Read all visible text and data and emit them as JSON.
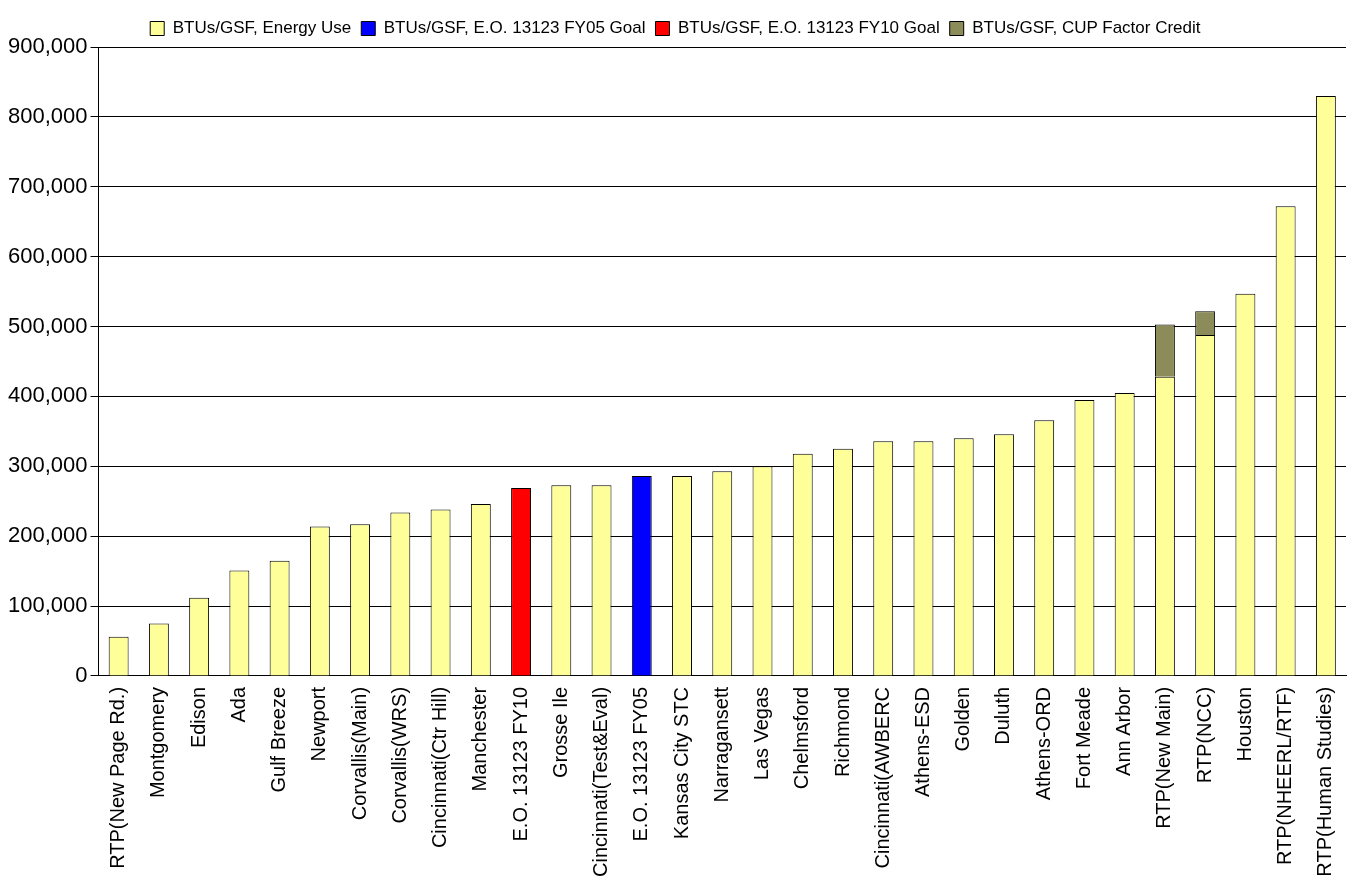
{
  "chart_data": {
    "type": "bar",
    "stacked": true,
    "grid": "y",
    "legend": "top",
    "categories": [
      "RTP(New Page Rd.)",
      "Montgomery",
      "Edison",
      "Ada",
      "Gulf Breeze",
      "Newport",
      "Corvallis(Main)",
      "Corvallis(WRS)",
      "Cincinnati(Ctr Hill)",
      "Manchester",
      "E.O. 13123 FY10",
      "Grosse Ile",
      "Cincinnati(Test&Eval)",
      "E.O. 13123 FY05",
      "Kansas City STC",
      "Narragansett",
      "Las Vegas",
      "Chelmsford",
      "Richmond",
      "Cincinnati(AWBERC",
      "Athens-ESD",
      "Golden",
      "Duluth",
      "Athens-ORD",
      "Fort Meade",
      "Ann Arbor",
      "RTP(New Main)",
      "RTP(NCC)",
      "Houston",
      "RTP(NHEERL/RTF)",
      "RTP(Human Studies)"
    ],
    "series": [
      {
        "name": "BTUs/GSF, Energy Use",
        "color": "#ffff99",
        "values": [
          56000,
          75000,
          112000,
          151000,
          165000,
          214000,
          217000,
          234000,
          238000,
          246000,
          null,
          273000,
          273000,
          null,
          286000,
          293000,
          300000,
          318000,
          325000,
          336000,
          336000,
          340000,
          346000,
          366000,
          395000,
          405000,
          428000,
          488000,
          547000,
          672000,
          830000
        ]
      },
      {
        "name": "BTUs/GSF, E.O. 13123 FY05 Goal",
        "color": "#0000ff",
        "values": [
          null,
          null,
          null,
          null,
          null,
          null,
          null,
          null,
          null,
          null,
          null,
          null,
          null,
          286000,
          null,
          null,
          null,
          null,
          null,
          null,
          null,
          null,
          null,
          null,
          null,
          null,
          null,
          null,
          null,
          null,
          null
        ]
      },
      {
        "name": "BTUs/GSF, E.O. 13123 FY10 Goal",
        "color": "#ff0000",
        "values": [
          null,
          null,
          null,
          null,
          null,
          null,
          null,
          null,
          null,
          null,
          269000,
          null,
          null,
          null,
          null,
          null,
          null,
          null,
          null,
          null,
          null,
          null,
          null,
          null,
          null,
          null,
          null,
          null,
          null,
          null,
          null
        ]
      },
      {
        "name": "BTUs/GSF, CUP Factor Credit",
        "color": "#8c8c5a",
        "values": [
          null,
          null,
          null,
          null,
          null,
          null,
          null,
          null,
          null,
          null,
          null,
          null,
          null,
          null,
          null,
          null,
          null,
          null,
          null,
          null,
          null,
          null,
          null,
          null,
          null,
          null,
          75000,
          34000,
          null,
          null,
          null
        ]
      }
    ],
    "ylim": [
      0,
      900000
    ],
    "yticks": [
      {
        "value": 0,
        "label": "0"
      },
      {
        "value": 100000,
        "label": "100,000"
      },
      {
        "value": 200000,
        "label": "200,000"
      },
      {
        "value": 300000,
        "label": "300,000"
      },
      {
        "value": 400000,
        "label": "400,000"
      },
      {
        "value": 500000,
        "label": "500,000"
      },
      {
        "value": 600000,
        "label": "600,000"
      },
      {
        "value": 700000,
        "label": "700,000"
      },
      {
        "value": 800000,
        "label": "800,000"
      },
      {
        "value": 900000,
        "label": "900,000"
      }
    ]
  }
}
